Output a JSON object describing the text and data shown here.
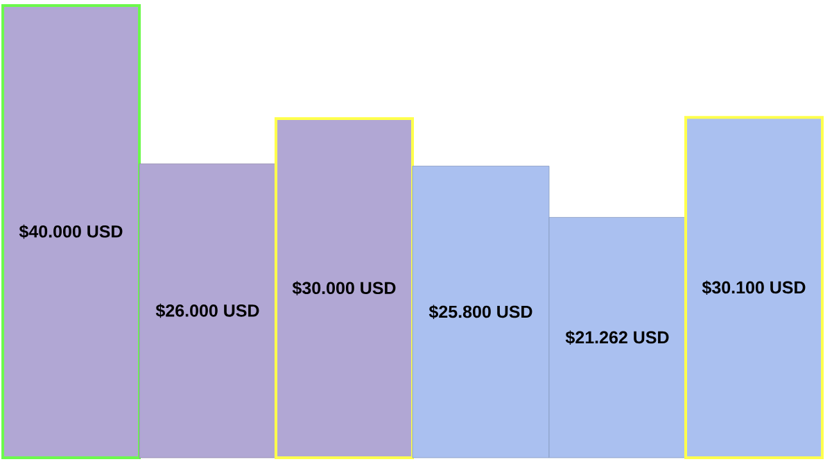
{
  "chart_data": {
    "type": "bar",
    "categories": [
      null,
      null,
      null,
      null,
      null,
      null
    ],
    "values": [
      40000,
      26000,
      30000,
      25800,
      21262,
      30100
    ],
    "colors": [
      "#b1a7d4",
      "#b1a7d4",
      "#b1a7d4",
      "#aac0f0",
      "#aac0f0",
      "#aac0f0"
    ],
    "value_labels": [
      "$40.000 USD",
      "$26.000 USD",
      "$30.000 USD",
      "$25.800 USD",
      "$21.262 USD",
      "$30.100 USD"
    ],
    "tick_labels": false
  }
}
